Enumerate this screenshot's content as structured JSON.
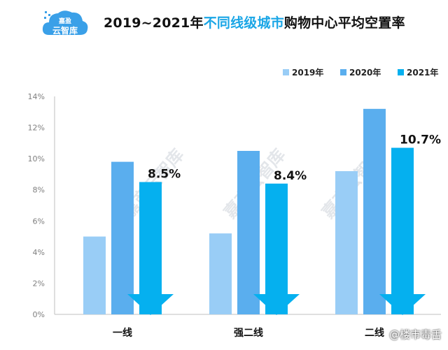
{
  "header": {
    "logo_line1": "嘉盈",
    "logo_line2": "云智库",
    "title_part1": "2019~2021年",
    "title_part2": "不同线级城市",
    "title_part3": "购物中心平均空置率"
  },
  "footer": {
    "watermark": "@楼市毒舌"
  },
  "colors": {
    "s2019": "#99cdf6",
    "s2020": "#5aaeee",
    "s2021": "#05b0ef",
    "title_highlight": "#1aa6e6",
    "axis": "#bfbfbf"
  },
  "chart_data": {
    "type": "bar",
    "title": "2019~2021年不同线级城市购物中心平均空置率",
    "categories": [
      "一线",
      "强二线",
      "二线"
    ],
    "series": [
      {
        "name": "2019年",
        "values": [
          5.0,
          5.2,
          9.2
        ]
      },
      {
        "name": "2020年",
        "values": [
          9.8,
          10.5,
          13.2
        ]
      },
      {
        "name": "2021年",
        "values": [
          8.5,
          8.4,
          10.7
        ]
      }
    ],
    "data_labels": [
      "8.5%",
      "8.4%",
      "10.7%"
    ],
    "ylim": [
      0,
      14
    ],
    "yticks": [
      "0%",
      "2%",
      "4%",
      "6%",
      "8%",
      "10%",
      "12%",
      "14%"
    ],
    "legend_position": "top-right",
    "grid": false,
    "watermark_text": "嘉商云智库"
  }
}
